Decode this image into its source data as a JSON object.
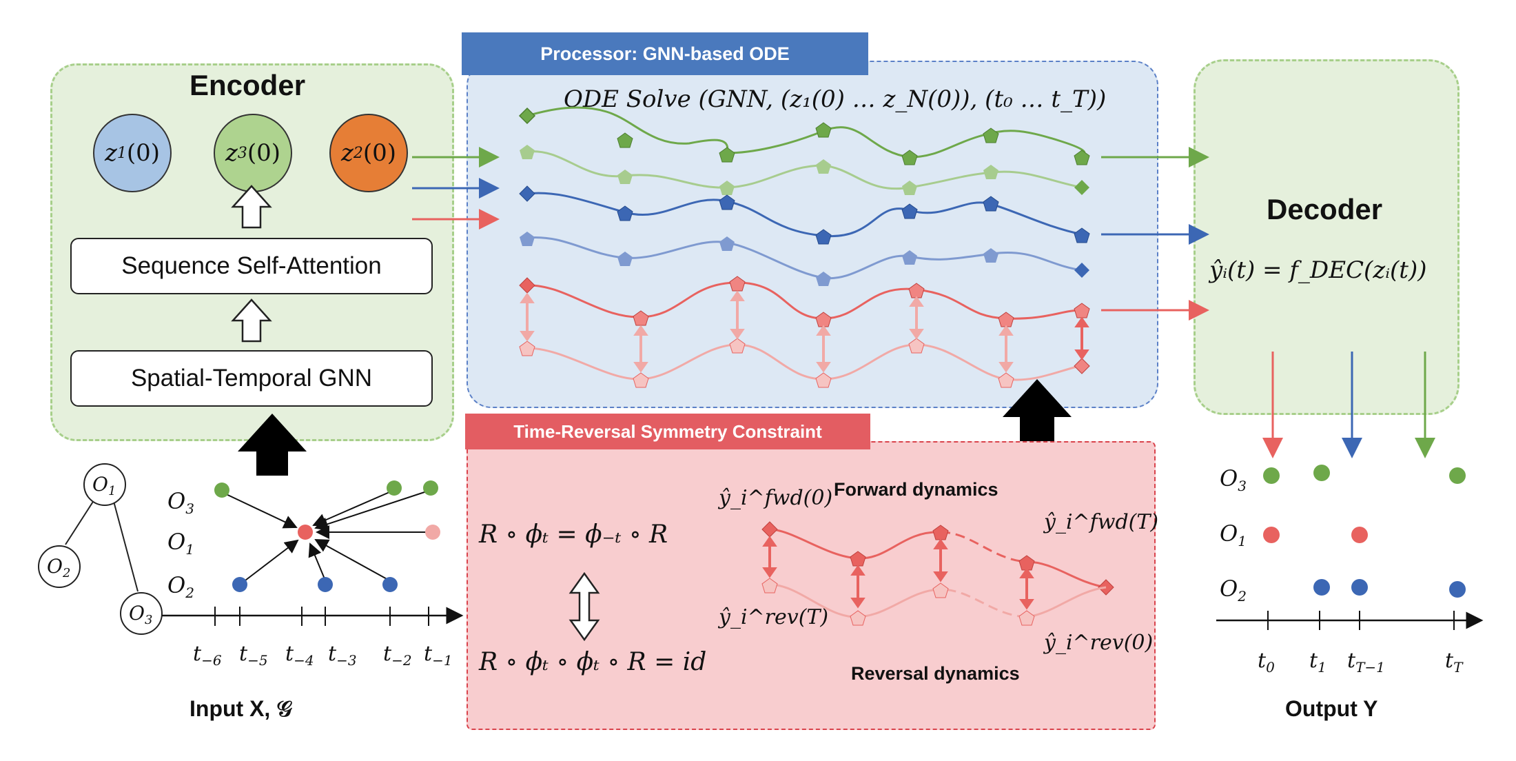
{
  "encoder": {
    "title": "Encoder",
    "latents": [
      {
        "base": "z",
        "sub": "1",
        "arg": "(0)",
        "color": "#a7c4e4"
      },
      {
        "base": "z",
        "sub": "3",
        "arg": "(0)",
        "color": "#aed38f"
      },
      {
        "base": "z",
        "sub": "2",
        "arg": "(0)",
        "color": "#e67e36"
      }
    ],
    "attention_label": "Sequence Self-Attention",
    "gnn_label": "Spatial-Temporal GNN"
  },
  "processor": {
    "tab_label": "Processor: GNN-based ODE",
    "solve_text": "ODE Solve (GNN, (z₁(0) … z_N(0)), (t₀ … t_T))",
    "colors": {
      "green": "#6ea84a",
      "green_light": "#a7cc8e",
      "blue": "#3c67b4",
      "blue_light": "#7f9ad0",
      "red": "#e8625f",
      "red_light": "#f1a9a6"
    }
  },
  "decoder": {
    "title": "Decoder",
    "equation": "ŷᵢ(t) = f_DEC(zᵢ(t))"
  },
  "trs": {
    "tab_label": "Time-Reversal Symmetry Constraint",
    "eq1": "R ∘ ϕₜ = ϕ₋ₜ ∘ R",
    "eq2": "R ∘ ϕₜ ∘ ϕₜ ∘ R = id",
    "forward_label": "Forward dynamics",
    "reversal_label": "Reversal dynamics",
    "y_fwd_0": "ŷ_i^fwd(0)",
    "y_fwd_T": "ŷ_i^fwd(T)",
    "y_rev_T": "ŷ_i^rev(T)",
    "y_rev_0": "ŷ_i^rev(0)"
  },
  "input": {
    "caption": "Input X, 𝒢",
    "graph_nodes": [
      "O1",
      "O2",
      "O3"
    ],
    "row_labels": [
      "O3",
      "O1",
      "O2"
    ],
    "time_ticks": [
      "t−6",
      "t−5",
      "t−4",
      "t−3",
      "t−2",
      "t−1"
    ]
  },
  "output": {
    "caption": "Output Y",
    "row_labels": [
      "O3",
      "O1",
      "O2"
    ],
    "time_ticks": [
      "t0",
      "t1",
      "tT−1",
      "tT"
    ]
  }
}
